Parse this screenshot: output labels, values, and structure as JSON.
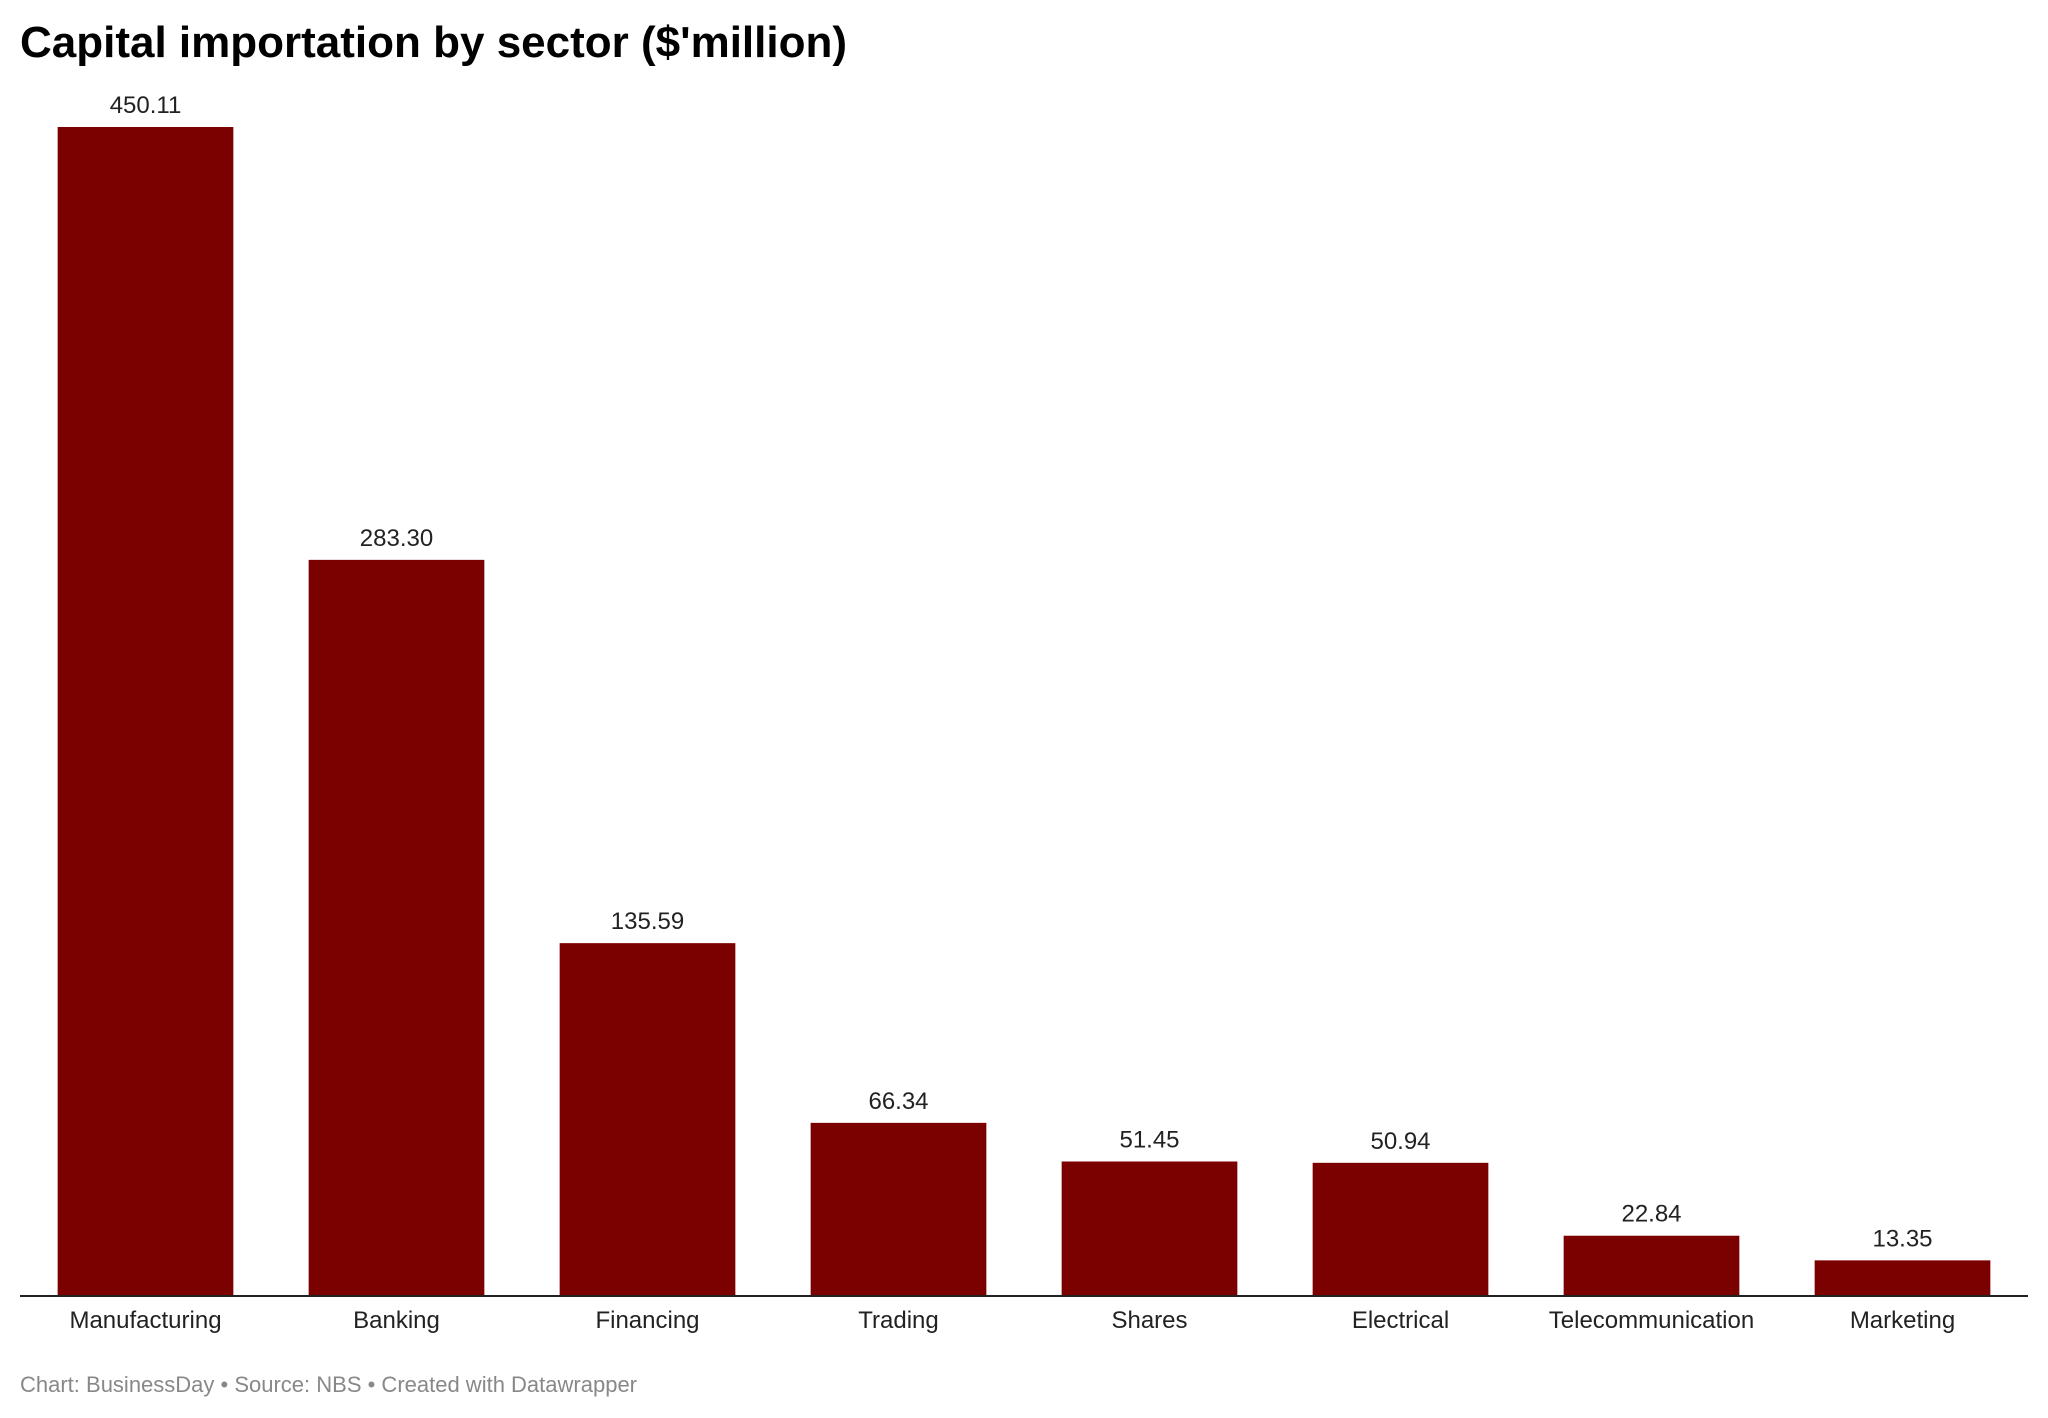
{
  "title": "Capital importation by sector ($'million)",
  "footer": "Chart: BusinessDay • Source: NBS • Created with Datawrapper",
  "chart_data": {
    "type": "bar",
    "title": "Capital importation by sector ($'million)",
    "categories": [
      "Manufacturing",
      "Banking",
      "Financing",
      "Trading",
      "Shares",
      "Electrical",
      "Telecommunication",
      "Marketing"
    ],
    "values": [
      450.11,
      283.3,
      135.59,
      66.34,
      51.45,
      50.94,
      22.84,
      13.35
    ],
    "value_labels": [
      "450.11",
      "283.30",
      "135.59",
      "66.34",
      "51.45",
      "50.94",
      "22.84",
      "13.35"
    ],
    "xlabel": "",
    "ylabel": "",
    "ylim": [
      0,
      450.11
    ],
    "grid": false,
    "bar_color": "#7b0000",
    "baseline_color": "#222222"
  }
}
